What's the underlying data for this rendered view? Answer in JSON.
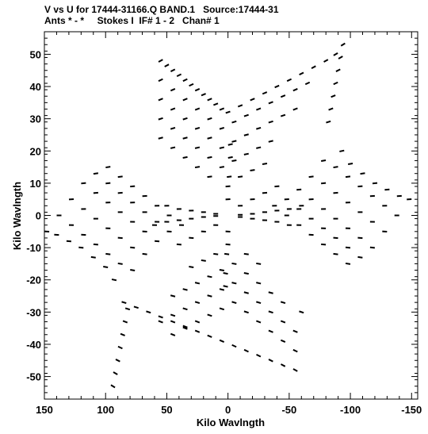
{
  "header": {
    "title": "V vs U for 17444-31166.Q BAND.1   Source:17444-31",
    "subtitle": "Ants * - *     Stokes I  IF# 1 - 2   Chan# 1"
  },
  "chart_data": {
    "type": "scatter",
    "title": "V vs U for 17444-31166.Q BAND.1   Source:17444-31",
    "xlabel": "Kilo Wavlngth",
    "ylabel": "Kilo Wavlngth",
    "xlim": [
      150,
      -155
    ],
    "ylim": [
      -57,
      57
    ],
    "x_reversed": true,
    "xticks": [
      150,
      100,
      50,
      0,
      -50,
      -100,
      -150
    ],
    "yticks": [
      50,
      40,
      30,
      20,
      10,
      0,
      -10,
      -20,
      -30,
      -40,
      -50
    ],
    "grid": false,
    "marker_color": "#000000",
    "series": [
      {
        "values": [
          {
            "x": 55,
            "y": 48
          },
          {
            "x": 50,
            "y": 46.5
          },
          {
            "x": 45,
            "y": 45
          },
          {
            "x": 40,
            "y": 43.5
          },
          {
            "x": 35,
            "y": 42
          },
          {
            "x": 30,
            "y": 40.5
          },
          {
            "x": 25,
            "y": 39
          },
          {
            "x": 20,
            "y": 37.5
          },
          {
            "x": 15,
            "y": 36
          },
          {
            "x": 10,
            "y": 34.5
          },
          {
            "x": 5,
            "y": 33
          },
          {
            "x": 0,
            "y": 32
          },
          {
            "x": -10,
            "y": 34
          },
          {
            "x": -20,
            "y": 36
          },
          {
            "x": -30,
            "y": 38
          },
          {
            "x": -40,
            "y": 40
          },
          {
            "x": -50,
            "y": 42
          },
          {
            "x": -60,
            "y": 44
          },
          {
            "x": -70,
            "y": 46
          },
          {
            "x": -80,
            "y": 48
          },
          {
            "x": -88,
            "y": 50
          },
          {
            "x": 55,
            "y": 42
          },
          {
            "x": 45,
            "y": 39
          },
          {
            "x": 35,
            "y": 36
          },
          {
            "x": 25,
            "y": 33
          },
          {
            "x": 15,
            "y": 30
          },
          {
            "x": 5,
            "y": 27
          },
          {
            "x": -5,
            "y": 29
          },
          {
            "x": -15,
            "y": 31
          },
          {
            "x": -25,
            "y": 33
          },
          {
            "x": -35,
            "y": 35
          },
          {
            "x": -45,
            "y": 37
          },
          {
            "x": -55,
            "y": 39
          },
          {
            "x": -65,
            "y": 41
          },
          {
            "x": 55,
            "y": 36
          },
          {
            "x": 45,
            "y": 33
          },
          {
            "x": 35,
            "y": 30
          },
          {
            "x": 25,
            "y": 27
          },
          {
            "x": 15,
            "y": 24
          },
          {
            "x": 5,
            "y": 21
          },
          {
            "x": -5,
            "y": 23
          },
          {
            "x": -15,
            "y": 25
          },
          {
            "x": -25,
            "y": 27
          },
          {
            "x": -35,
            "y": 29
          },
          {
            "x": -45,
            "y": 31
          },
          {
            "x": -55,
            "y": 33
          },
          {
            "x": 55,
            "y": 30
          },
          {
            "x": 45,
            "y": 27
          },
          {
            "x": 35,
            "y": 24
          },
          {
            "x": 25,
            "y": 21
          },
          {
            "x": 15,
            "y": 18
          },
          {
            "x": 5,
            "y": 15
          },
          {
            "x": -5,
            "y": 17
          },
          {
            "x": -15,
            "y": 19
          },
          {
            "x": -25,
            "y": 21
          },
          {
            "x": -35,
            "y": 23
          },
          {
            "x": 55,
            "y": 24
          },
          {
            "x": 45,
            "y": 21
          },
          {
            "x": 35,
            "y": 18
          },
          {
            "x": 25,
            "y": 15
          },
          {
            "x": 15,
            "y": 12
          },
          {
            "x": -10,
            "y": 12
          },
          {
            "x": -20,
            "y": 14
          },
          {
            "x": -30,
            "y": 16
          },
          {
            "x": -94,
            "y": 53
          },
          {
            "x": -92,
            "y": 49
          },
          {
            "x": -90,
            "y": 45
          },
          {
            "x": -88,
            "y": 41
          },
          {
            "x": -86,
            "y": 37
          },
          {
            "x": -84,
            "y": 33
          },
          {
            "x": -82,
            "y": 29
          },
          {
            "x": -55,
            "y": -48
          },
          {
            "x": -45,
            "y": -46.5
          },
          {
            "x": -35,
            "y": -45
          },
          {
            "x": -25,
            "y": -43.5
          },
          {
            "x": -15,
            "y": -42
          },
          {
            "x": -5,
            "y": -40.5
          },
          {
            "x": 5,
            "y": -39
          },
          {
            "x": 15,
            "y": -37.5
          },
          {
            "x": 25,
            "y": -36
          },
          {
            "x": 35,
            "y": -34.5
          },
          {
            "x": 45,
            "y": -33
          },
          {
            "x": 55,
            "y": -31.5
          },
          {
            "x": 65,
            "y": -30
          },
          {
            "x": 75,
            "y": -28.5
          },
          {
            "x": 85,
            "y": -27
          },
          {
            "x": -55,
            "y": -42
          },
          {
            "x": -45,
            "y": -39
          },
          {
            "x": -35,
            "y": -36
          },
          {
            "x": -25,
            "y": -33
          },
          {
            "x": -15,
            "y": -30
          },
          {
            "x": -5,
            "y": -27
          },
          {
            "x": 5,
            "y": -29
          },
          {
            "x": 15,
            "y": -31
          },
          {
            "x": 25,
            "y": -33
          },
          {
            "x": 35,
            "y": -35
          },
          {
            "x": 45,
            "y": -37
          },
          {
            "x": -55,
            "y": -36
          },
          {
            "x": -45,
            "y": -33
          },
          {
            "x": -35,
            "y": -30
          },
          {
            "x": -25,
            "y": -27
          },
          {
            "x": -15,
            "y": -24
          },
          {
            "x": -5,
            "y": -21
          },
          {
            "x": 5,
            "y": -23
          },
          {
            "x": 15,
            "y": -25
          },
          {
            "x": 25,
            "y": -27
          },
          {
            "x": 35,
            "y": -29
          },
          {
            "x": 45,
            "y": -31
          },
          {
            "x": 55,
            "y": -33
          },
          {
            "x": -60,
            "y": -30
          },
          {
            "x": -45,
            "y": -27
          },
          {
            "x": -35,
            "y": -24
          },
          {
            "x": -25,
            "y": -21
          },
          {
            "x": -15,
            "y": -18
          },
          {
            "x": -5,
            "y": -15
          },
          {
            "x": 5,
            "y": -17
          },
          {
            "x": 15,
            "y": -19
          },
          {
            "x": 25,
            "y": -21
          },
          {
            "x": 35,
            "y": -23
          },
          {
            "x": 45,
            "y": -25
          },
          {
            "x": -25,
            "y": -15
          },
          {
            "x": -15,
            "y": -12
          },
          {
            "x": 10,
            "y": -12
          },
          {
            "x": 20,
            "y": -14
          },
          {
            "x": 30,
            "y": -16
          },
          {
            "x": 94,
            "y": -53
          },
          {
            "x": 92,
            "y": -49
          },
          {
            "x": 90,
            "y": -45
          },
          {
            "x": 88,
            "y": -41
          },
          {
            "x": 86,
            "y": -37
          },
          {
            "x": 84,
            "y": -33
          },
          {
            "x": 82,
            "y": -29
          },
          {
            "x": -148,
            "y": 5
          },
          {
            "x": -140,
            "y": 6
          },
          {
            "x": -130,
            "y": 8
          },
          {
            "x": -120,
            "y": 10
          },
          {
            "x": -110,
            "y": 13
          },
          {
            "x": -100,
            "y": 16
          },
          {
            "x": -93,
            "y": 20
          },
          {
            "x": -138,
            "y": 0
          },
          {
            "x": -128,
            "y": 3
          },
          {
            "x": -118,
            "y": 6
          },
          {
            "x": -108,
            "y": 9
          },
          {
            "x": -98,
            "y": 12
          },
          {
            "x": -88,
            "y": 15
          },
          {
            "x": -78,
            "y": 17
          },
          {
            "x": -128,
            "y": -5
          },
          {
            "x": -118,
            "y": -2
          },
          {
            "x": -108,
            "y": 1
          },
          {
            "x": -98,
            "y": 4
          },
          {
            "x": -88,
            "y": 7
          },
          {
            "x": -78,
            "y": 10
          },
          {
            "x": -68,
            "y": 12
          },
          {
            "x": -118,
            "y": -10
          },
          {
            "x": -108,
            "y": -7
          },
          {
            "x": -98,
            "y": -4
          },
          {
            "x": -88,
            "y": -1
          },
          {
            "x": -78,
            "y": 2
          },
          {
            "x": -68,
            "y": 5
          },
          {
            "x": -58,
            "y": 8
          },
          {
            "x": -108,
            "y": -13
          },
          {
            "x": -98,
            "y": -10
          },
          {
            "x": -88,
            "y": -7
          },
          {
            "x": -78,
            "y": -4
          },
          {
            "x": -68,
            "y": -1
          },
          {
            "x": -58,
            "y": 2
          },
          {
            "x": -48,
            "y": 5
          },
          {
            "x": -98,
            "y": -15
          },
          {
            "x": -88,
            "y": -12
          },
          {
            "x": -78,
            "y": -9
          },
          {
            "x": -68,
            "y": -6
          },
          {
            "x": -58,
            "y": -3
          },
          {
            "x": -48,
            "y": 0
          },
          {
            "x": -38,
            "y": 3
          },
          {
            "x": -60,
            "y": 3
          },
          {
            "x": -50,
            "y": 2
          },
          {
            "x": -40,
            "y": 1.5
          },
          {
            "x": -30,
            "y": 1
          },
          {
            "x": -20,
            "y": 0.5
          },
          {
            "x": -10,
            "y": 0.2
          },
          {
            "x": -50,
            "y": -3
          },
          {
            "x": -40,
            "y": -2
          },
          {
            "x": -30,
            "y": -1.5
          },
          {
            "x": -20,
            "y": -1
          },
          {
            "x": -10,
            "y": -0.5
          },
          {
            "x": -40,
            "y": 9
          },
          {
            "x": -30,
            "y": 7
          },
          {
            "x": -20,
            "y": 5
          },
          {
            "x": -10,
            "y": 3
          },
          {
            "x": 148,
            "y": -5
          },
          {
            "x": 140,
            "y": -6
          },
          {
            "x": 130,
            "y": -8
          },
          {
            "x": 120,
            "y": -10
          },
          {
            "x": 110,
            "y": -13
          },
          {
            "x": 100,
            "y": -16
          },
          {
            "x": 93,
            "y": -20
          },
          {
            "x": 138,
            "y": 0
          },
          {
            "x": 128,
            "y": -3
          },
          {
            "x": 118,
            "y": -6
          },
          {
            "x": 108,
            "y": -9
          },
          {
            "x": 98,
            "y": -12
          },
          {
            "x": 88,
            "y": -15
          },
          {
            "x": 78,
            "y": -17
          },
          {
            "x": 128,
            "y": 5
          },
          {
            "x": 118,
            "y": 2
          },
          {
            "x": 108,
            "y": -1
          },
          {
            "x": 98,
            "y": -4
          },
          {
            "x": 88,
            "y": -7
          },
          {
            "x": 78,
            "y": -10
          },
          {
            "x": 68,
            "y": -12
          },
          {
            "x": 118,
            "y": 10
          },
          {
            "x": 108,
            "y": 7
          },
          {
            "x": 98,
            "y": 4
          },
          {
            "x": 88,
            "y": 1
          },
          {
            "x": 78,
            "y": -2
          },
          {
            "x": 68,
            "y": -5
          },
          {
            "x": 58,
            "y": -8
          },
          {
            "x": 108,
            "y": 13
          },
          {
            "x": 98,
            "y": 10
          },
          {
            "x": 88,
            "y": 7
          },
          {
            "x": 78,
            "y": 4
          },
          {
            "x": 68,
            "y": 1
          },
          {
            "x": 58,
            "y": -2
          },
          {
            "x": 48,
            "y": -5
          },
          {
            "x": 98,
            "y": 15
          },
          {
            "x": 88,
            "y": 12
          },
          {
            "x": 78,
            "y": 9
          },
          {
            "x": 68,
            "y": 6
          },
          {
            "x": 58,
            "y": 3
          },
          {
            "x": 48,
            "y": 0
          },
          {
            "x": 38,
            "y": -3
          },
          {
            "x": 60,
            "y": -3
          },
          {
            "x": 50,
            "y": -2
          },
          {
            "x": 40,
            "y": -1.5
          },
          {
            "x": 30,
            "y": -1
          },
          {
            "x": 20,
            "y": -0.5
          },
          {
            "x": 10,
            "y": -0.2
          },
          {
            "x": 50,
            "y": 3
          },
          {
            "x": 40,
            "y": 2
          },
          {
            "x": 30,
            "y": 1.5
          },
          {
            "x": 20,
            "y": 1
          },
          {
            "x": 10,
            "y": 0.5
          },
          {
            "x": 40,
            "y": -9
          },
          {
            "x": 30,
            "y": -7
          },
          {
            "x": 20,
            "y": -5
          },
          {
            "x": 10,
            "y": -3
          },
          {
            "x": -2,
            "y": 22
          },
          {
            "x": -2,
            "y": 18
          },
          {
            "x": -1,
            "y": 12
          },
          {
            "x": 0,
            "y": 9
          },
          {
            "x": 0,
            "y": 5
          },
          {
            "x": 2,
            "y": -22
          },
          {
            "x": 2,
            "y": -18
          },
          {
            "x": 1,
            "y": -12
          },
          {
            "x": 0,
            "y": -9
          },
          {
            "x": 0,
            "y": -5
          }
        ]
      }
    ]
  }
}
